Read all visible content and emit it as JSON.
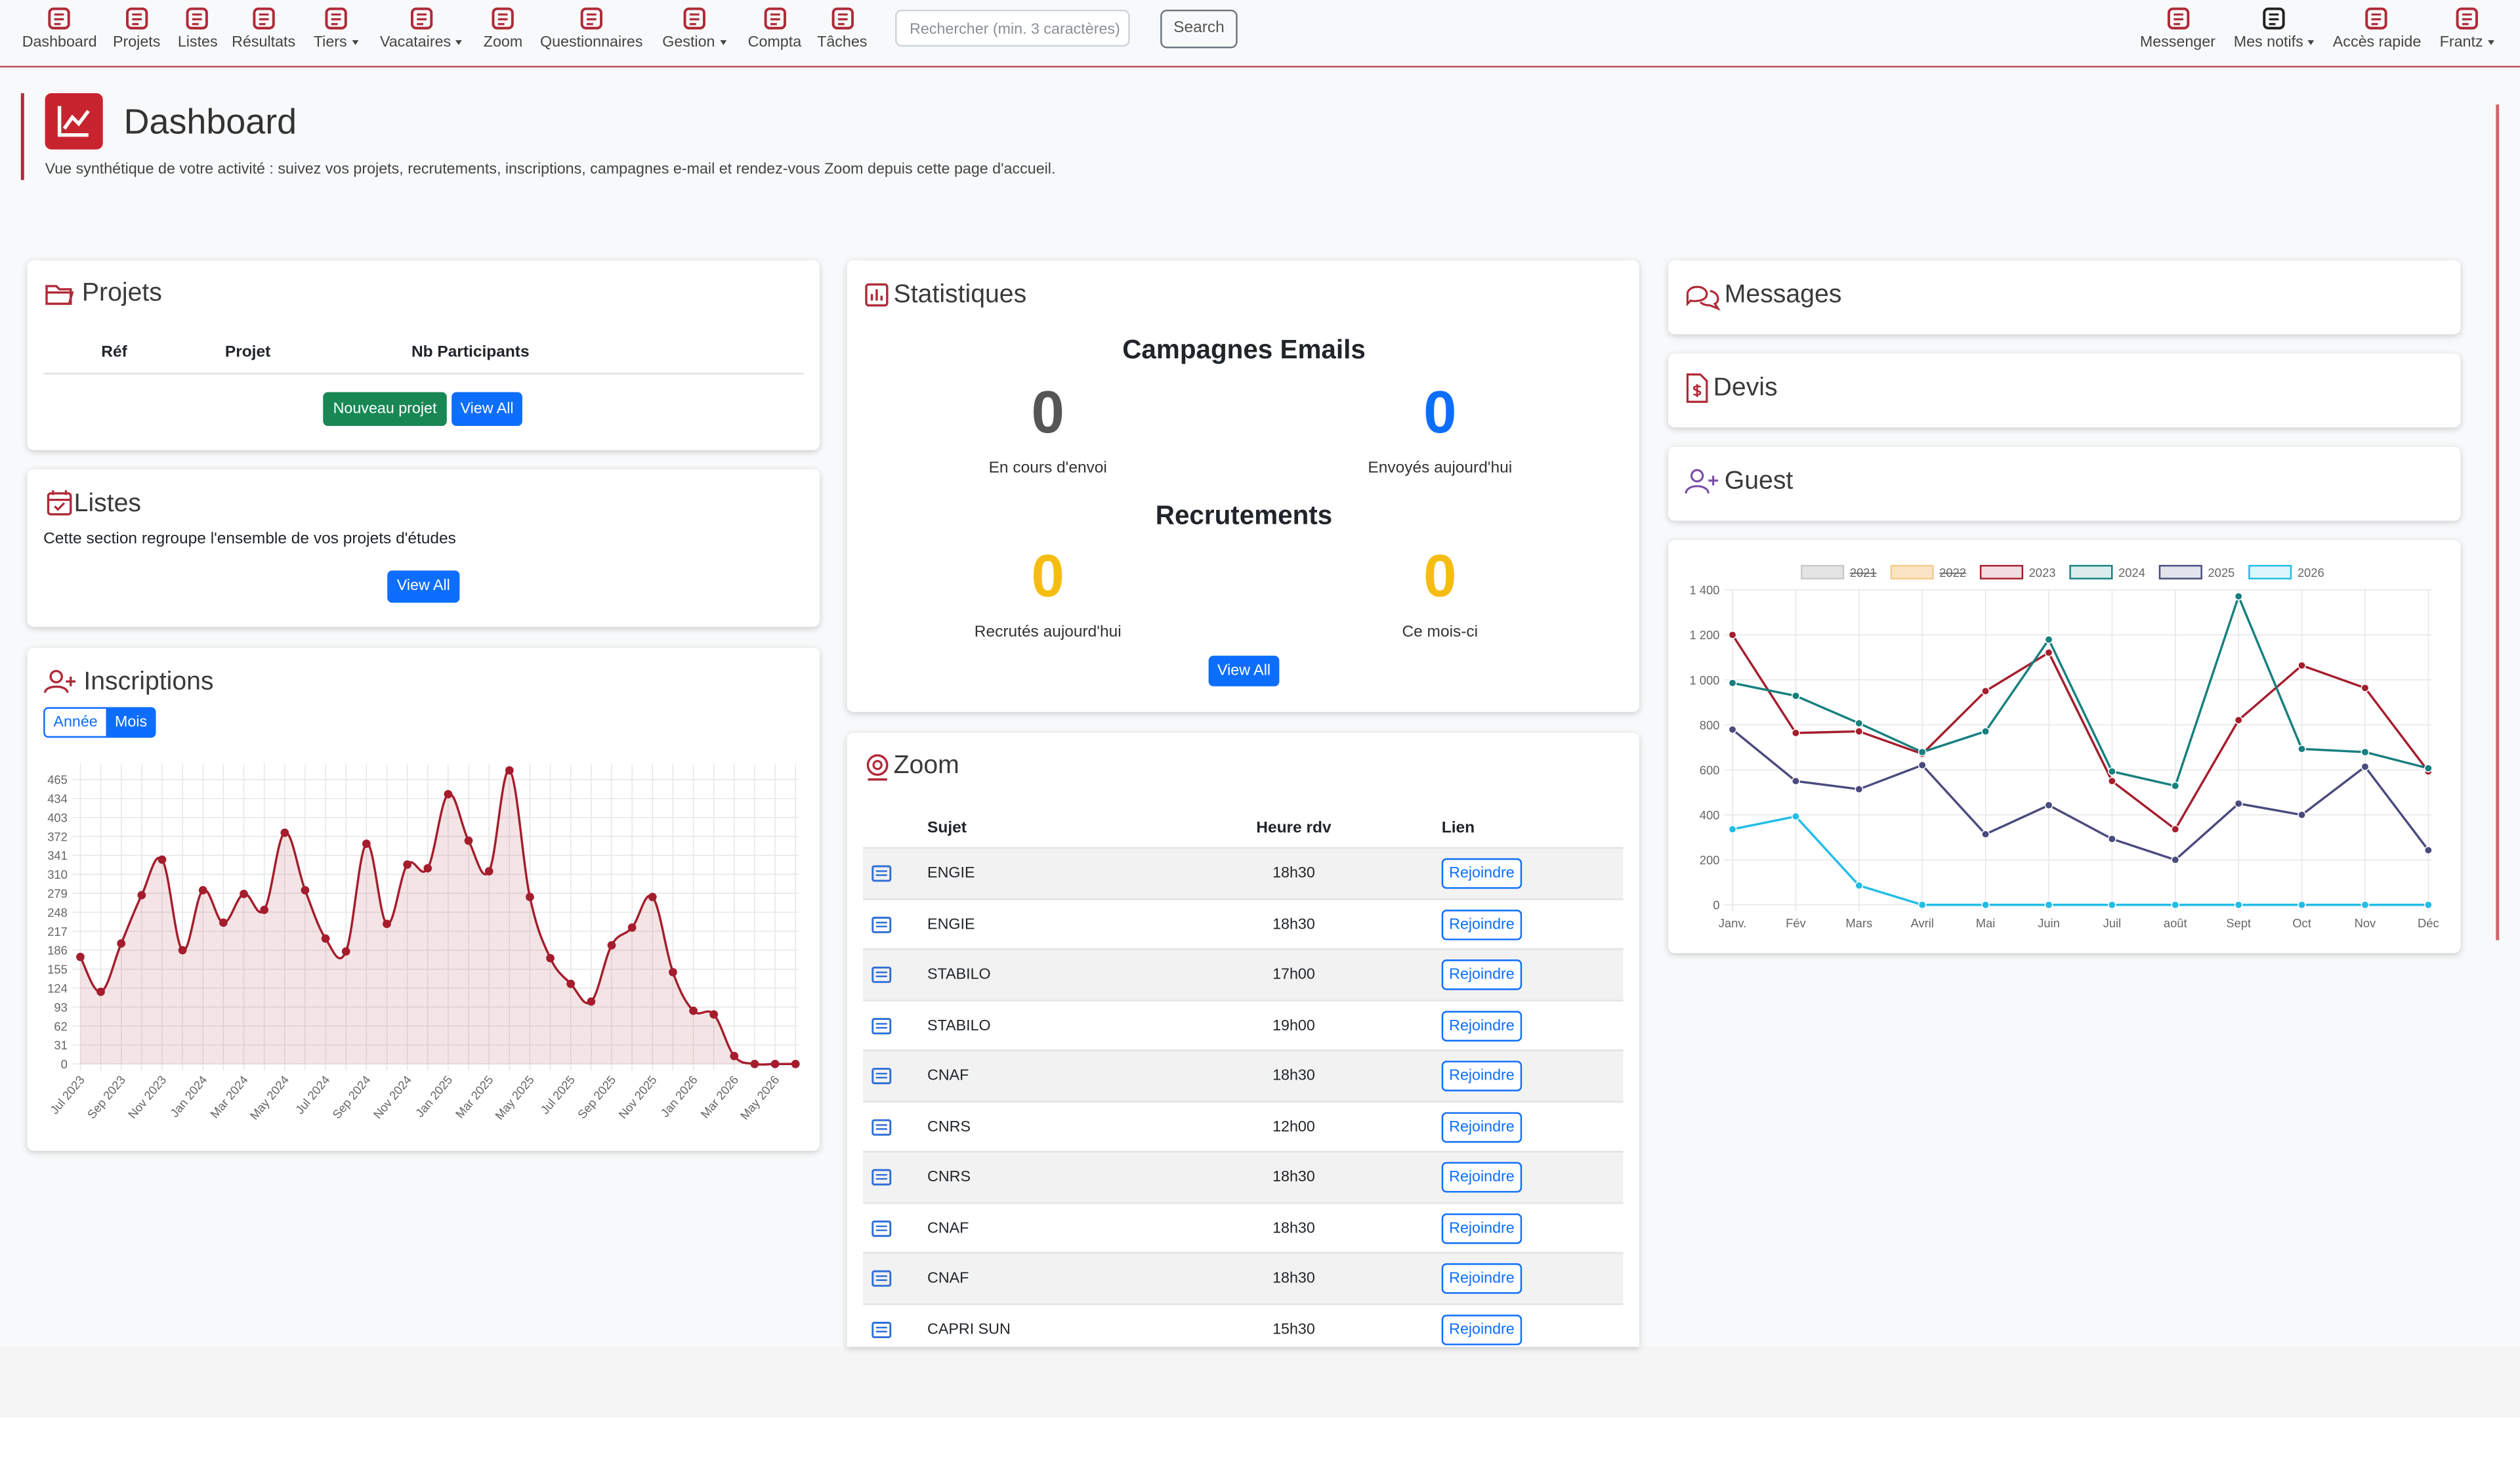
{
  "nav": {
    "items": [
      {
        "label": "Dashboard"
      },
      {
        "label": "Projets"
      },
      {
        "label": "Listes"
      },
      {
        "label": "Résultats"
      },
      {
        "label": "Tiers",
        "dropdown": true
      },
      {
        "label": "Vacataires",
        "dropdown": true
      },
      {
        "label": "Zoom"
      },
      {
        "label": "Questionnaires"
      },
      {
        "label": "Gestion",
        "dropdown": true
      },
      {
        "label": "Compta"
      },
      {
        "label": "Tâches"
      }
    ],
    "search_placeholder": "Rechercher (min. 3 caractères)",
    "search_button": "Search",
    "right_items": [
      {
        "label": "Messenger"
      },
      {
        "label": "Mes notifs",
        "dropdown": true
      },
      {
        "label": "Accès rapide"
      },
      {
        "label": "Frantz",
        "dropdown": true
      }
    ]
  },
  "header": {
    "title": "Dashboard",
    "subtitle": "Vue synthétique de votre activité : suivez vos projets, recrutements, inscriptions, campagnes e-mail et rendez-vous Zoom depuis cette page d'accueil."
  },
  "projets": {
    "title": "Projets",
    "columns": [
      "Réf",
      "Projet",
      "Nb Participants"
    ],
    "buttons": [
      "Nouveau projet",
      "View All"
    ]
  },
  "listes": {
    "title": "Listes",
    "text": "Cette section regroupe l'ensemble de vos projets d'études",
    "button": "View All"
  },
  "inscriptions": {
    "title": "Inscriptions",
    "toggles": [
      "Année",
      "Mois"
    ],
    "chart_data": {
      "type": "line",
      "smooth": true,
      "fill": true,
      "color": "#a51d2d",
      "grid": true,
      "categories": [
        "Jul 2023",
        null,
        "Sep 2023",
        null,
        "Nov 2023",
        null,
        "Jan 2024",
        null,
        "Mar 2024",
        null,
        "May 2024",
        null,
        "Jul 2024",
        null,
        "Sep 2024",
        null,
        "Nov 2024",
        null,
        "Jan 2025",
        null,
        "Mar 2025",
        null,
        "May 2025",
        null,
        "Jul 2025",
        null,
        "Sep 2025",
        null,
        "Nov 2025",
        null,
        "Jan 2026",
        null,
        "Mar 2026",
        null,
        "May 2026",
        null
      ],
      "values": [
        175,
        118,
        197,
        276,
        334,
        186,
        284,
        231,
        278,
        252,
        378,
        284,
        205,
        184,
        360,
        229,
        326,
        320,
        441,
        365,
        315,
        480,
        273,
        173,
        131,
        102,
        194,
        223,
        273,
        150,
        87,
        81,
        13,
        0,
        0,
        0
      ],
      "ylim": [
        0,
        490
      ],
      "yticks": [
        0,
        31,
        62,
        93,
        124,
        155,
        186,
        217,
        248,
        279,
        310,
        341,
        372,
        403,
        434,
        465
      ]
    }
  },
  "statistiques": {
    "title": "Statistiques",
    "emails_title": "Campagnes Emails",
    "emails": [
      {
        "value": "0",
        "label": "En cours d'envoi"
      },
      {
        "value": "0",
        "label": "Envoyés aujourd'hui"
      }
    ],
    "recrutements_title": "Recrutements",
    "recrutements": [
      {
        "value": "0",
        "label": "Recrutés aujourd'hui"
      },
      {
        "value": "0",
        "label": "Ce mois-ci"
      }
    ],
    "button": "View All"
  },
  "zoom": {
    "title": "Zoom",
    "columns": [
      "Sujet",
      "Heure rdv",
      "Lien"
    ],
    "rows": [
      [
        "ENGIE",
        "18h30",
        "Rejoindre"
      ],
      [
        "ENGIE",
        "18h30",
        "Rejoindre"
      ],
      [
        "STABILO",
        "17h00",
        "Rejoindre"
      ],
      [
        "STABILO",
        "19h00",
        "Rejoindre"
      ],
      [
        "CNAF",
        "18h30",
        "Rejoindre"
      ],
      [
        "CNRS",
        "12h00",
        "Rejoindre"
      ],
      [
        "CNRS",
        "18h30",
        "Rejoindre"
      ],
      [
        "CNAF",
        "18h30",
        "Rejoindre"
      ],
      [
        "CNAF",
        "18h30",
        "Rejoindre"
      ],
      [
        "CAPRI SUN",
        "15h30",
        "Rejoindre"
      ]
    ]
  },
  "messages": {
    "title": "Messages"
  },
  "devis": {
    "title": "Devis"
  },
  "guest": {
    "title": "Guest",
    "chart_data": {
      "type": "line",
      "grid": true,
      "legend": "top",
      "categories": [
        "Janv.",
        "Fév",
        "Mars",
        "Avril",
        "Mai",
        "Juin",
        "Juil",
        "août",
        "Sept",
        "Oct",
        "Nov",
        "Déc"
      ],
      "series": [
        {
          "name": "2021",
          "color": "#c9c9c9",
          "hidden": true,
          "values": [
            null,
            null,
            null,
            null,
            null,
            null,
            null,
            null,
            null,
            null,
            null,
            null
          ]
        },
        {
          "name": "2022",
          "color": "#f5c98a",
          "hidden": true,
          "values": [
            null,
            null,
            null,
            null,
            null,
            null,
            null,
            null,
            null,
            null,
            null,
            null
          ]
        },
        {
          "name": "2023",
          "color": "#a51d2d",
          "values": [
            1200,
            764,
            771,
            671,
            950,
            1121,
            550,
            336,
            821,
            1064,
            964,
            593
          ]
        },
        {
          "name": "2024",
          "color": "#16807f",
          "values": [
            986,
            929,
            807,
            679,
            771,
            1179,
            593,
            529,
            1371,
            693,
            679,
            607
          ]
        },
        {
          "name": "2025",
          "color": "#4a4a7e",
          "values": [
            779,
            550,
            514,
            621,
            314,
            443,
            293,
            200,
            450,
            400,
            614,
            243
          ]
        },
        {
          "name": "2026",
          "color": "#22bde6",
          "values": [
            336,
            393,
            86,
            0,
            0,
            0,
            0,
            0,
            0,
            0,
            0,
            0
          ]
        }
      ],
      "ylim": [
        0,
        1400
      ],
      "yticks": [
        0,
        200,
        400,
        600,
        800,
        {
          "value": 1000,
          "label": "1 000"
        },
        {
          "value": 1200,
          "label": "1 200"
        },
        {
          "value": 1400,
          "label": "1 400"
        }
      ]
    }
  }
}
